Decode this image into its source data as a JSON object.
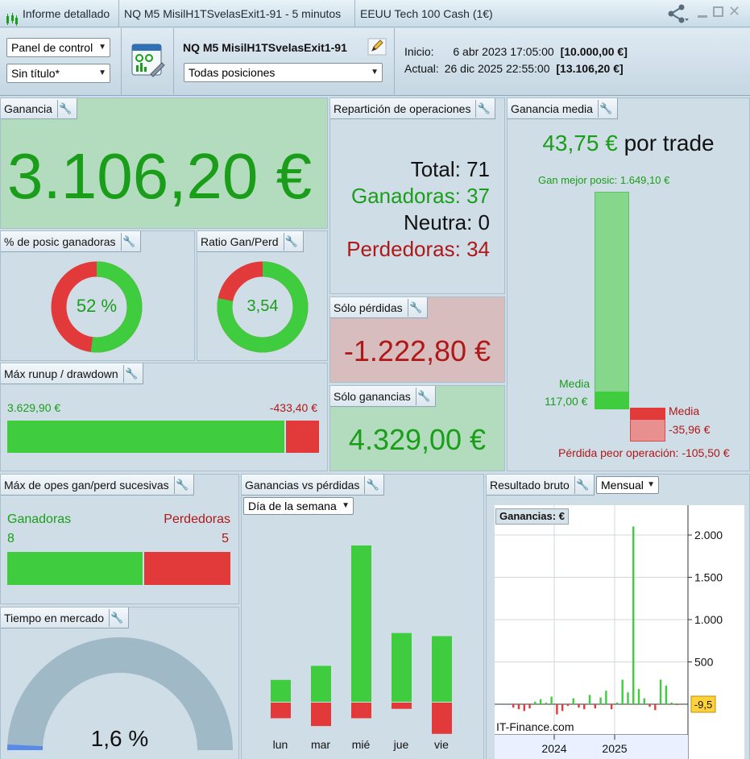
{
  "titlebar": {
    "report_label": "Informe detallado",
    "strategy_tab": "NQ M5 MisilH1TSvelasExit1-91 - 5 minutos",
    "instrument_tab": "EEUU Tech 100 Cash (1€)"
  },
  "toolbar": {
    "panel_select": "Panel de control",
    "title_select": "Sin título*",
    "strategy_name": "NQ M5 MisilH1TSvelasExit1-91",
    "positions_select": "Todas posiciones",
    "start_label": "Inicio:",
    "start_date": "6 abr 2023 17:05:00",
    "start_value": "[10.000,00 €]",
    "current_label": "Actual:",
    "current_date": "26 dic 2025 22:55:00",
    "current_value": "[13.106,20 €]"
  },
  "ganancia": {
    "title": "Ganancia",
    "value": "3.106,20 €"
  },
  "pct_ganadoras": {
    "title": "% de posic ganadoras",
    "value": "52 %",
    "fraction": 0.52
  },
  "ratio": {
    "title": "Ratio Gan/Perd",
    "value": "3,54",
    "fraction": 0.78
  },
  "reparticion": {
    "title": "Repartición de operaciones",
    "total_label": "Total:",
    "total": "71",
    "win_label": "Ganadoras:",
    "win": "37",
    "neutral_label": "Neutra:",
    "neutral": "0",
    "loss_label": "Perdedoras:",
    "loss": "34"
  },
  "solo_perdidas": {
    "title": "Sólo pérdidas",
    "value": "-1.222,80 €"
  },
  "solo_ganancias": {
    "title": "Sólo ganancias",
    "value": "4.329,00 €"
  },
  "runup": {
    "title": "Máx runup / drawdown",
    "runup": "3.629,90 €",
    "drawdown": "-433,40 €",
    "runup_value": 3629.9,
    "drawdown_value": 433.4
  },
  "ganancia_media": {
    "title": "Ganancia media",
    "value": "43,75 €",
    "suffix": "por trade",
    "best_label": "Gan mejor posic: 1.649,10 €",
    "media_win_label": "Media",
    "media_win_value": "117,00 €",
    "media_loss_label": "Media",
    "media_loss_value": "-35,96 €",
    "worst_label": "Pérdida peor operación: -105,50 €"
  },
  "sucesivas": {
    "title": "Máx de opes gan/perd sucesivas",
    "win_label": "Ganadoras",
    "loss_label": "Perdedoras",
    "win": "8",
    "loss": "5"
  },
  "tiempo": {
    "title": "Tiempo en mercado",
    "value": "1,6 %",
    "fraction": 0.016
  },
  "gvp": {
    "title": "Ganancias vs pérdidas",
    "select": "Día de la semana",
    "days": [
      "lun",
      "mar",
      "mié",
      "jue",
      "vie"
    ],
    "gains": [
      14,
      23,
      100,
      44,
      42
    ],
    "losses": [
      -10,
      -15,
      -10,
      -4,
      -20
    ]
  },
  "bruto": {
    "title": "Resultado bruto",
    "select": "Mensual",
    "legend": "Ganancias: €",
    "watermark": "IT-Finance.com",
    "y_ticks": [
      "2.000",
      "1.500",
      "1.000",
      "500"
    ],
    "last_value": "-9,5",
    "x_labels": [
      "2024",
      "2025"
    ]
  },
  "chart_data": [
    {
      "type": "bar",
      "title": "Ganancias vs pérdidas",
      "categories": [
        "lun",
        "mar",
        "mié",
        "jue",
        "vie"
      ],
      "series": [
        {
          "values": [
            14,
            23,
            100,
            44,
            42
          ]
        },
        {
          "values": [
            -10,
            -15,
            -10,
            -4,
            -20
          ]
        }
      ]
    },
    {
      "type": "bar",
      "title": "Resultado bruto",
      "ylim": [
        -150,
        2200
      ],
      "series": [
        {
          "name": "Ganancias",
          "values": [
            -40,
            -60,
            -80,
            -50,
            30,
            60,
            20,
            90,
            -120,
            -80,
            -20,
            70,
            -40,
            -60,
            110,
            -50,
            80,
            160,
            -60,
            20,
            290,
            140,
            2100,
            180,
            70,
            -30,
            -70,
            290,
            220,
            20,
            -9.5
          ]
        }
      ],
      "x_labels": [
        "2024",
        "2025"
      ]
    }
  ]
}
